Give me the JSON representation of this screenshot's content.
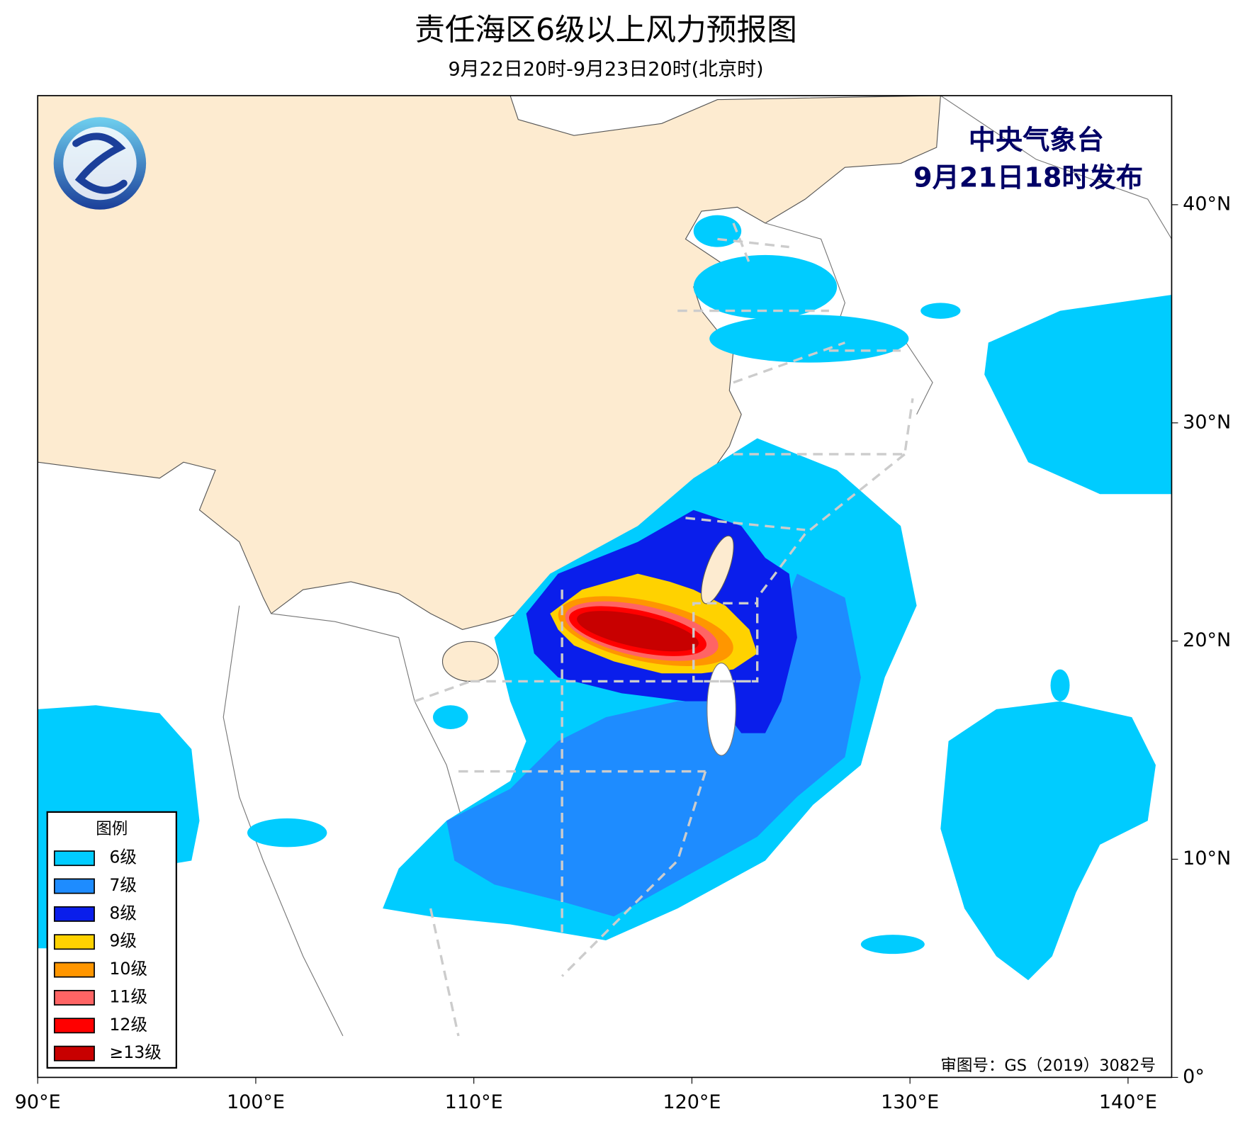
{
  "header": {
    "title": "责任海区6级以上风力预报图",
    "subtitle": "9月22日20时-9月23日20时(北京时)"
  },
  "publisher": {
    "name": "中央气象台",
    "time": "9月21日18时发布"
  },
  "map": {
    "xlim": [
      90,
      142
    ],
    "ylim": [
      0,
      45
    ],
    "xticks": [
      {
        "value": 90,
        "label": "90°E"
      },
      {
        "value": 100,
        "label": "100°E"
      },
      {
        "value": 110,
        "label": "110°E"
      },
      {
        "value": 120,
        "label": "120°E"
      },
      {
        "value": 130,
        "label": "130°E"
      },
      {
        "value": 140,
        "label": "140°E"
      }
    ],
    "yticks": [
      {
        "value": 0,
        "label": "0°"
      },
      {
        "value": 10,
        "label": "10°N"
      },
      {
        "value": 20,
        "label": "20°N"
      },
      {
        "value": 30,
        "label": "30°N"
      },
      {
        "value": 40,
        "label": "40°N"
      }
    ]
  },
  "legend": {
    "title": "图例",
    "items": [
      {
        "label": "6级",
        "color": "#00ccff"
      },
      {
        "label": "7级",
        "color": "#1e8cff"
      },
      {
        "label": "8级",
        "color": "#0a1eeb"
      },
      {
        "label": "9级",
        "color": "#ffd200"
      },
      {
        "label": "10级",
        "color": "#ff9600"
      },
      {
        "label": "11级",
        "color": "#ff6464"
      },
      {
        "label": "12级",
        "color": "#ff0000"
      },
      {
        "label": "≥13级",
        "color": "#c80000"
      }
    ]
  },
  "footer": {
    "note": "审图号：GS（2019）3082号"
  }
}
